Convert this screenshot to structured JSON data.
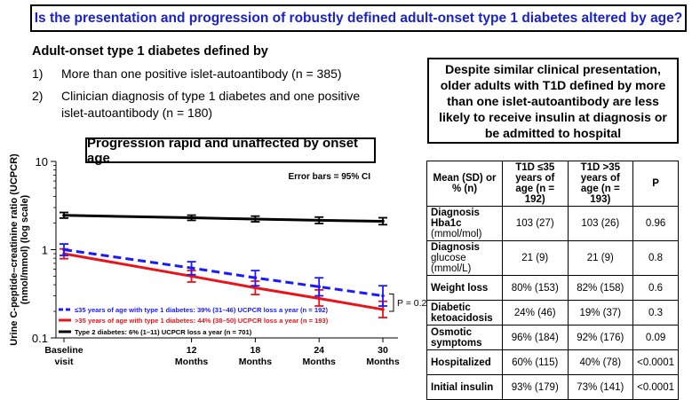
{
  "title": "Is the presentation and progression of robustly defined adult-onset type 1 diabetes altered by age?",
  "definition": {
    "heading": "Adult-onset type 1 diabetes defined by",
    "items": [
      {
        "num": "1)",
        "text": "More than one positive islet-autoantibody (n = 385)"
      },
      {
        "num": "2)",
        "text": "Clinician diagnosis of type 1 diabetes and one positive islet-autoantibody (n = 180)"
      }
    ]
  },
  "callout": "Despite similar clinical presentation, older adults with T1D defined by more than one islet-autoantibody are less likely to receive insulin at diagnosis or be admitted to hospital",
  "progression_title": "Progression rapid and unaffected by onset age",
  "chart_data": {
    "type": "line",
    "ylabel": "Urine C-peptide–creatinine ratio (UCPCR) (nmol/mmol) (log scale)",
    "yscale": "log",
    "ylim": [
      0.1,
      10
    ],
    "yticks": [
      0.1,
      1,
      10
    ],
    "ytick_labels": [
      "0.1",
      "1",
      "10"
    ],
    "x": [
      0,
      12,
      18,
      24,
      30
    ],
    "xtick_labels": [
      "Baseline visit",
      "12 Months",
      "18 Months",
      "24 Months",
      "30 Months"
    ],
    "error_note": "Error bars = 95% CI",
    "p_label": "P = 0.2",
    "series": [
      {
        "name": "≤35 years of age with type 1 diabetes: 39% (31–46) UCPCR loss a year (n = 192)",
        "color": "#1a1aff",
        "dash": true,
        "values": [
          1.0,
          0.62,
          0.48,
          0.38,
          0.3
        ],
        "lower": [
          0.86,
          0.52,
          0.39,
          0.3,
          0.23
        ],
        "upper": [
          1.16,
          0.73,
          0.58,
          0.48,
          0.39
        ]
      },
      {
        "name": ">35 years of age with type 1 diabetes: 44% (38–50) UCPCR loss a year (n = 193)",
        "color": "#e8141a",
        "dash": false,
        "values": [
          0.9,
          0.5,
          0.37,
          0.28,
          0.21
        ],
        "lower": [
          0.79,
          0.43,
          0.31,
          0.23,
          0.17
        ],
        "upper": [
          1.02,
          0.58,
          0.44,
          0.35,
          0.26
        ]
      },
      {
        "name": "Type 2 diabetes: 6% (1–11) UCPCR loss a year (n = 701)",
        "color": "#000000",
        "dash": false,
        "values": [
          2.45,
          2.3,
          2.22,
          2.15,
          2.1
        ],
        "lower": [
          2.28,
          2.15,
          2.07,
          1.98,
          1.92
        ],
        "upper": [
          2.64,
          2.46,
          2.4,
          2.34,
          2.3
        ]
      }
    ]
  },
  "table": {
    "headers": [
      "Mean (SD) or % (n)",
      "T1D ≤35 years of age (n = 192)",
      "T1D >35 years of age (n = 193)",
      "P"
    ],
    "rows": [
      {
        "main": "Diagnosis Hba1c",
        "sub": "(mmol/mol)",
        "c1": "103 (27)",
        "c2": "103 (26)",
        "p": "0.96"
      },
      {
        "main": "Diagnosis",
        "sub": "glucose (mmol/L)",
        "c1": "21 (9)",
        "c2": "21 (9)",
        "p": "0.8"
      },
      {
        "main": "Weight loss",
        "sub": "",
        "c1": "80% (153)",
        "c2": "82% (158)",
        "p": "0.6"
      },
      {
        "main": "Diabetic ketoacidosis",
        "sub": "",
        "c1": "24% (46)",
        "c2": "19% (37)",
        "p": "0.3"
      },
      {
        "main": "Osmotic symptoms",
        "sub": "",
        "c1": "96% (184)",
        "c2": "92% (176)",
        "p": "0.09"
      },
      {
        "main": "Hospitalized",
        "sub": "",
        "c1": "60% (115)",
        "c2": "40% (78)",
        "p": "<0.0001"
      },
      {
        "main": "Initial insulin",
        "sub": "",
        "c1": "93% (179)",
        "c2": "73% (141)",
        "p": "<0.0001"
      }
    ]
  }
}
